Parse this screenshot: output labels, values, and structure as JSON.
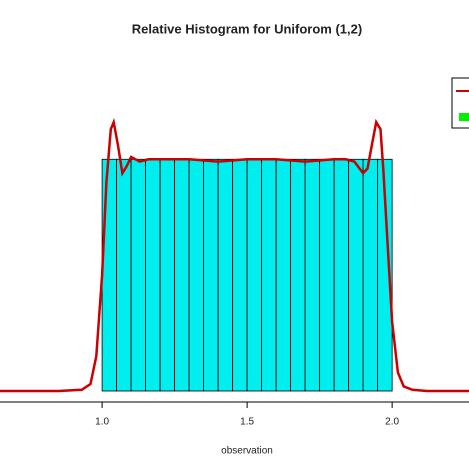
{
  "chart_data": {
    "type": "histogram",
    "title": "Relative Histogram for Uniforom (1,2)",
    "x_label": "observation",
    "bins": [
      1.0,
      1.05,
      1.1,
      1.15,
      1.2,
      1.25,
      1.3,
      1.35,
      1.4,
      1.45,
      1.5,
      1.55,
      1.6,
      1.65,
      1.7,
      1.75,
      1.8,
      1.85,
      1.9,
      1.95,
      2.0
    ],
    "values": [
      1.0,
      1.0,
      1.0,
      1.0,
      1.0,
      1.0,
      1.0,
      1.0,
      1.0,
      1.0,
      1.0,
      1.0,
      1.0,
      1.0,
      1.0,
      1.0,
      1.0,
      1.0,
      1.0,
      1.0
    ],
    "color": "#00eeee",
    "curve": {
      "color": "#cc0000",
      "x": [
        0.648,
        0.85,
        0.93,
        0.96,
        0.98,
        1.0,
        1.015,
        1.03,
        1.04,
        1.055,
        1.07,
        1.085,
        1.1,
        1.13,
        1.16,
        1.2,
        1.3,
        1.4,
        1.5,
        1.6,
        1.7,
        1.8,
        1.84,
        1.87,
        1.9,
        1.915,
        1.93,
        1.945,
        1.96,
        1.97,
        1.985,
        2.0,
        2.02,
        2.04,
        2.07,
        2.12,
        2.265
      ],
      "y": [
        0,
        0,
        0.005,
        0.03,
        0.15,
        0.5,
        0.9,
        1.13,
        1.16,
        1.06,
        0.94,
        0.97,
        1.01,
        0.99,
        1.0,
        1.0,
        1.0,
        0.99,
        1.0,
        1.0,
        0.99,
        1.0,
        1.0,
        0.99,
        0.94,
        0.96,
        1.06,
        1.16,
        1.13,
        0.95,
        0.62,
        0.3,
        0.08,
        0.02,
        0.005,
        0,
        0
      ]
    },
    "xlim": [
      0.648,
      2.265
    ],
    "ylim": [
      0,
      1.45
    ],
    "xticks": [
      {
        "value": 1.0,
        "label": "1.0"
      },
      1.5,
      {
        "value": 2.0,
        "label": "2.0"
      }
    ]
  }
}
